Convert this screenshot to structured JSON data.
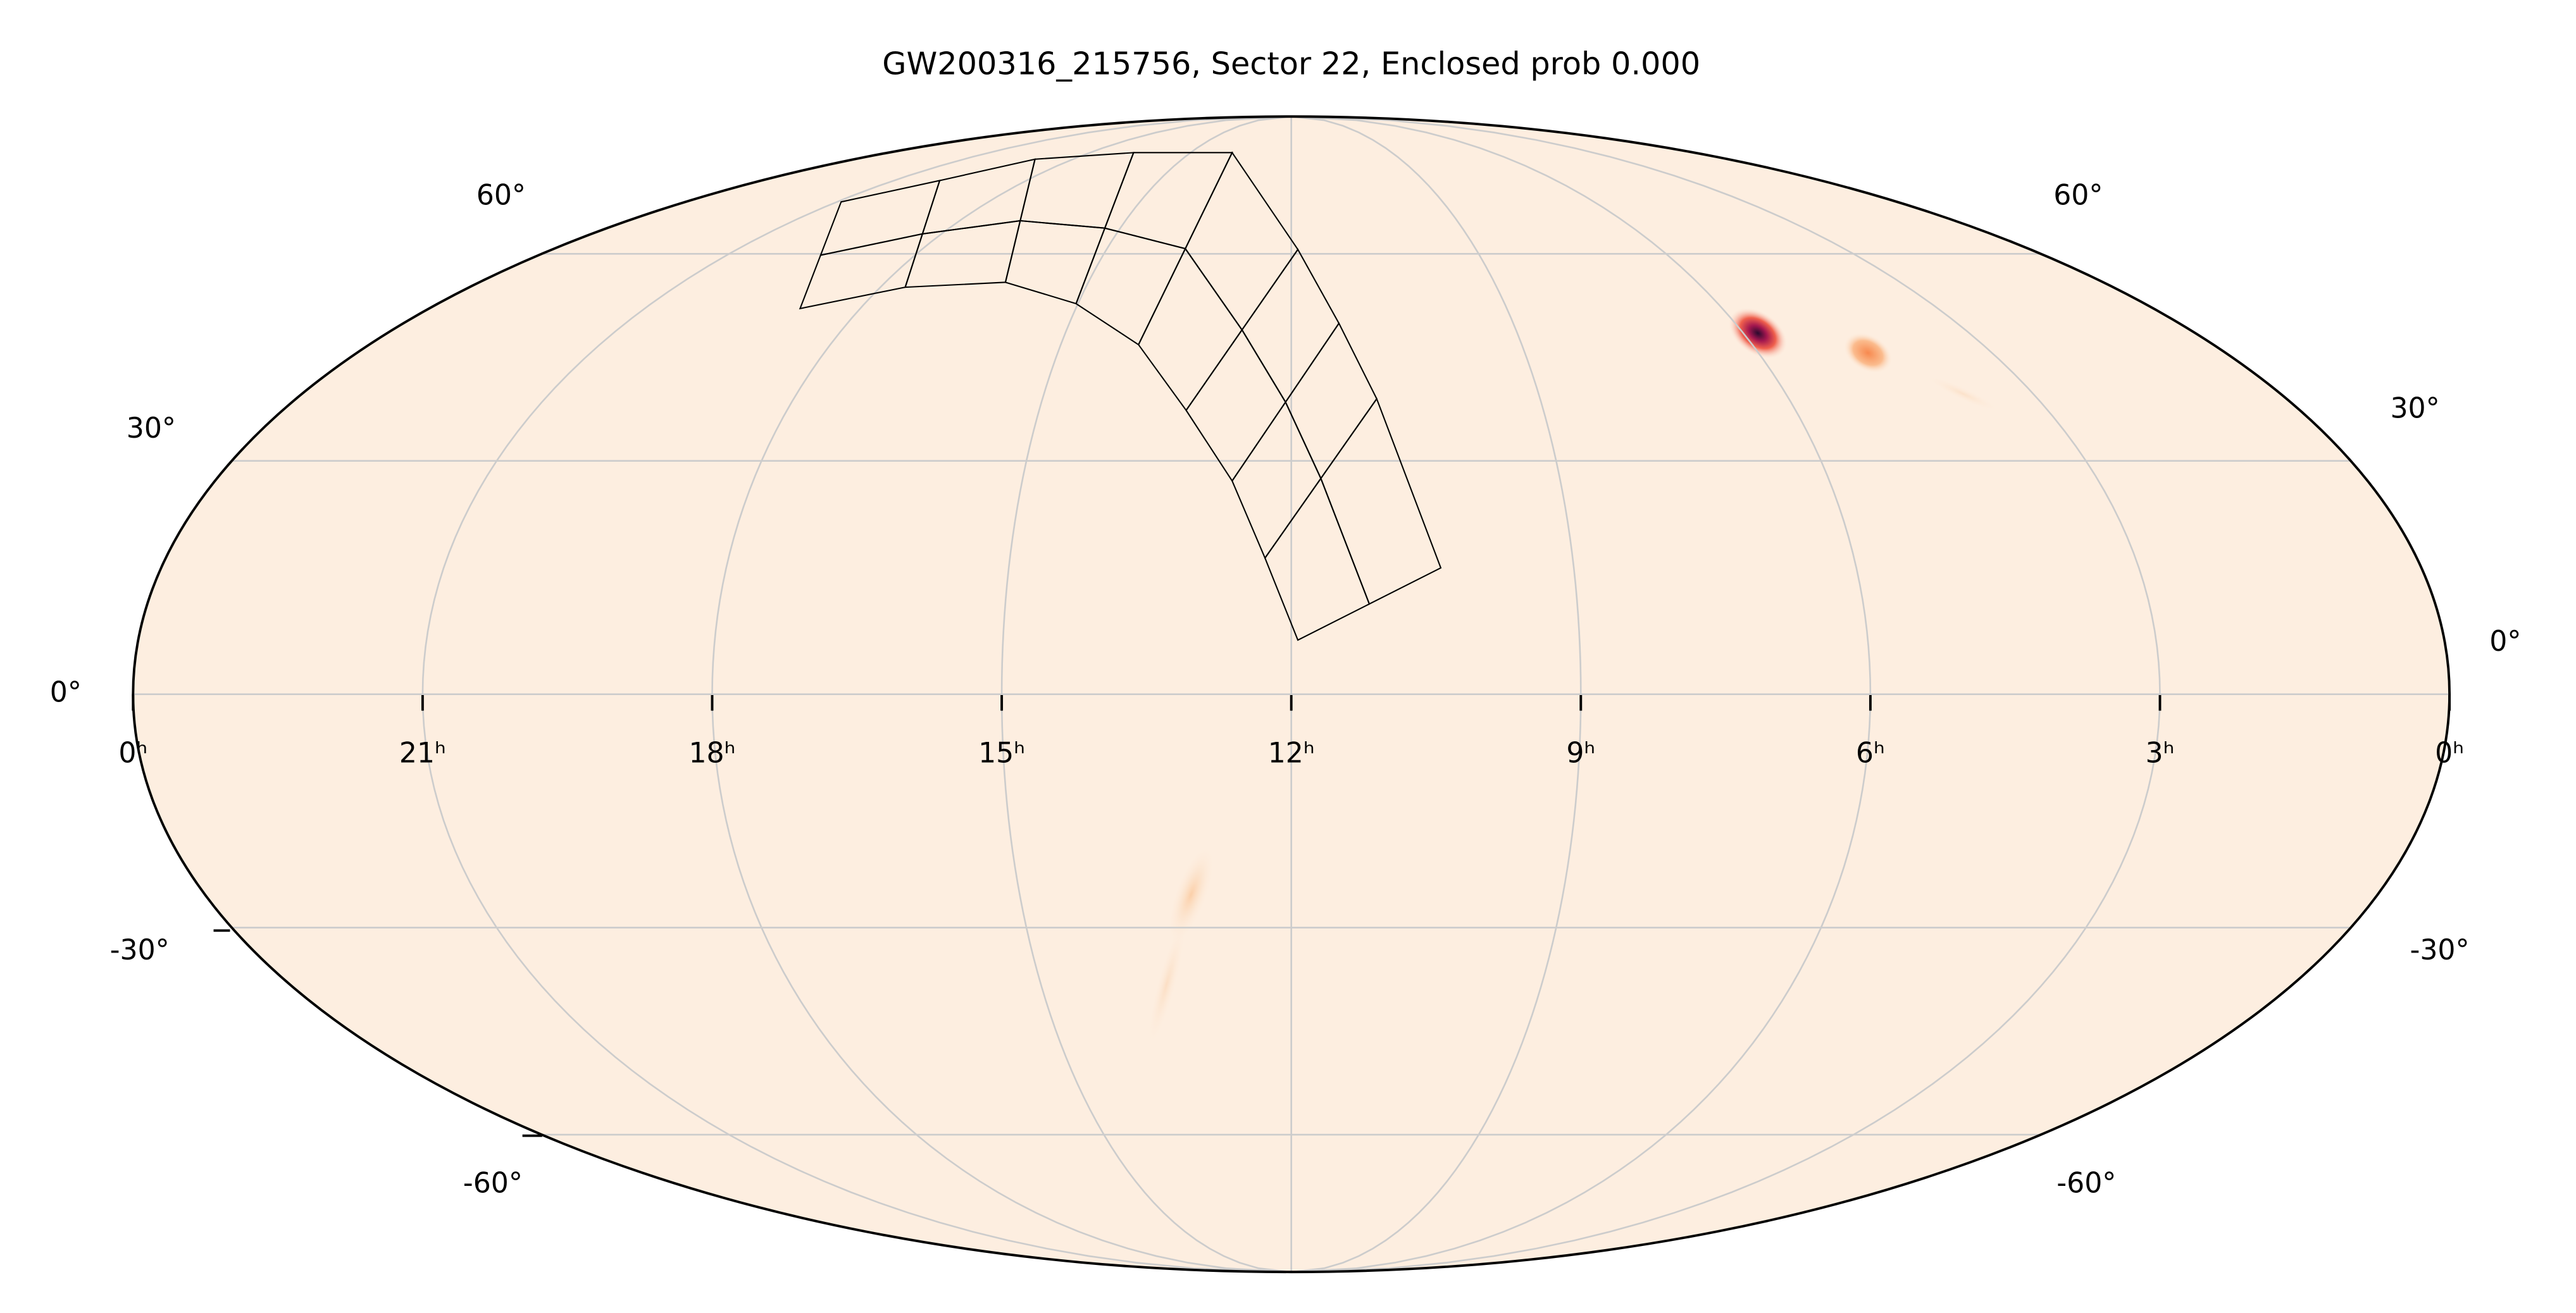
{
  "chart_data": {
    "type": "mollweide",
    "title": "GW200316_215756, Sector 22, Enclosed prob 0.000",
    "xlim": [
      24,
      0
    ],
    "xticks": [
      {
        "value": 24,
        "label": "0ʰ"
      },
      {
        "value": 21,
        "label": "21ʰ"
      },
      {
        "value": 18,
        "label": "18ʰ"
      },
      {
        "value": 15,
        "label": "15ʰ"
      },
      {
        "value": 12,
        "label": "12ʰ"
      },
      {
        "value": 9,
        "label": "9ʰ"
      },
      {
        "value": 6,
        "label": "6ʰ"
      },
      {
        "value": 3,
        "label": "3ʰ"
      },
      {
        "value": 0,
        "label": "0ʰ"
      }
    ],
    "ylim": [
      -90,
      90
    ],
    "yticks": [
      {
        "value": -60,
        "label": "-60°"
      },
      {
        "value": -30,
        "label": "-30°"
      },
      {
        "value": 0,
        "label": "0°"
      },
      {
        "value": 30,
        "label": "30°"
      },
      {
        "value": 60,
        "label": "60°"
      }
    ],
    "grid": true
  }
}
